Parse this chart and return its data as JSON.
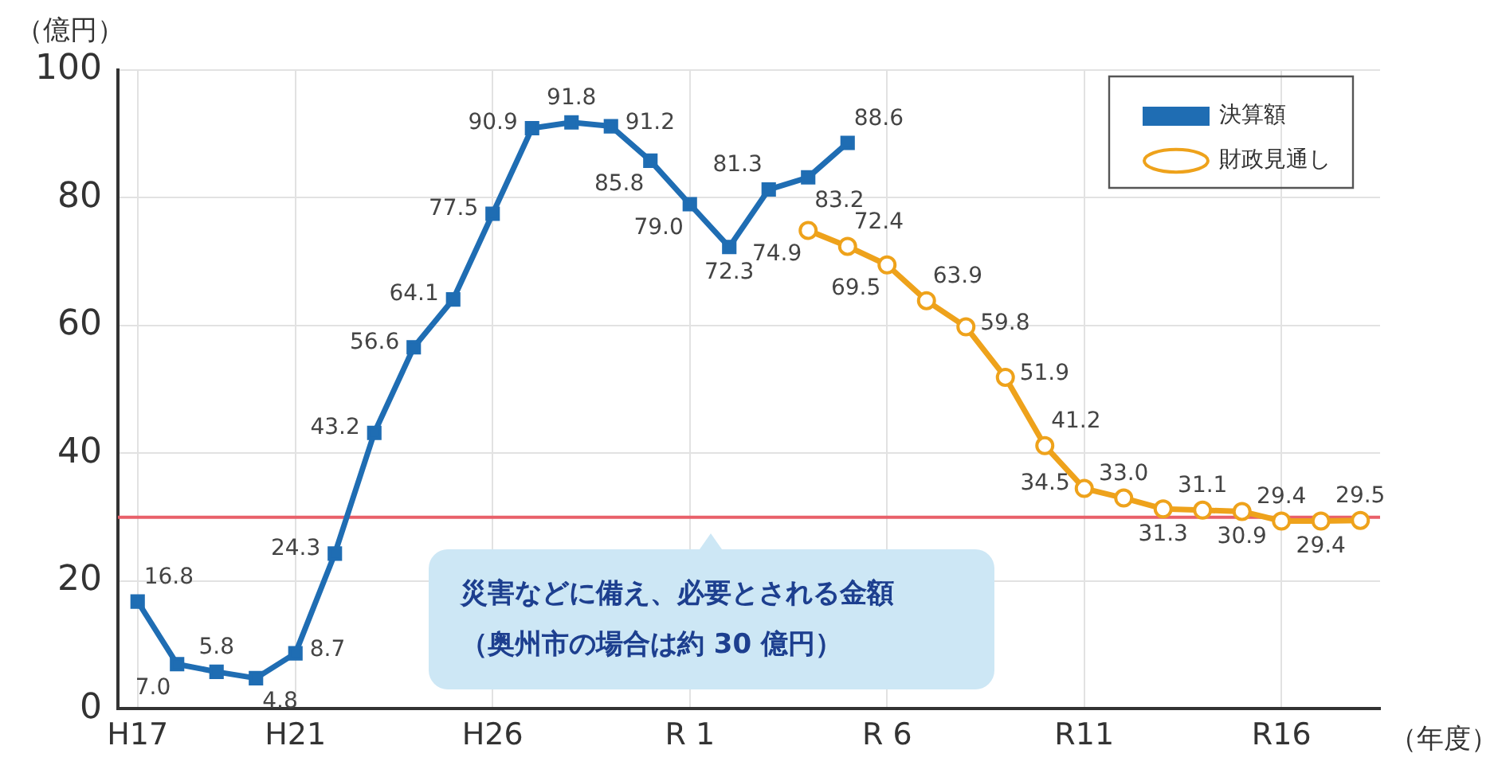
{
  "chart_data": {
    "type": "line",
    "xlabel": "（年度）",
    "ylabel": "（億円）",
    "categories": [
      "H17",
      null,
      null,
      null,
      "H21",
      null,
      null,
      null,
      null,
      "H26",
      null,
      null,
      null,
      null,
      "R 1",
      null,
      null,
      null,
      null,
      "R 6",
      null,
      null,
      null,
      null,
      "R11",
      null,
      null,
      null,
      null,
      "R16",
      null,
      null
    ],
    "series": [
      {
        "name": "決算額",
        "color": "#1f6db3",
        "marker": "square",
        "values": [
          16.8,
          7.0,
          5.8,
          4.8,
          8.7,
          24.3,
          43.2,
          56.6,
          64.1,
          77.5,
          90.9,
          91.8,
          91.2,
          85.8,
          79.0,
          72.3,
          81.3,
          83.2,
          88.6,
          null,
          null,
          null,
          null,
          null,
          null,
          null,
          null,
          null,
          null,
          null,
          null,
          null
        ],
        "value_labels": [
          "16.8",
          "7.0",
          "5.8",
          "4.8",
          "8.7",
          "24.3",
          "43.2",
          "56.6",
          "64.1",
          "77.5",
          "90.9",
          "91.8",
          "91.2",
          "85.8",
          "79.0",
          "72.3",
          "81.3",
          "83.2",
          "88.6",
          null,
          null,
          null,
          null,
          null,
          null,
          null,
          null,
          null,
          null,
          null,
          null,
          null
        ]
      },
      {
        "name": "財政見通し",
        "color": "#eea21b",
        "marker": "circle",
        "values": [
          null,
          null,
          null,
          null,
          null,
          null,
          null,
          null,
          null,
          null,
          null,
          null,
          null,
          null,
          null,
          null,
          null,
          74.9,
          72.4,
          69.5,
          63.9,
          59.8,
          51.9,
          41.2,
          34.5,
          33.0,
          31.3,
          31.1,
          30.9,
          29.4,
          29.4,
          29.5
        ],
        "value_labels": [
          null,
          null,
          null,
          null,
          null,
          null,
          null,
          null,
          null,
          null,
          null,
          null,
          null,
          null,
          null,
          null,
          null,
          "74.9",
          "72.4",
          "69.5",
          "63.9",
          "59.8",
          "51.9",
          "41.2",
          "34.5",
          "33.0",
          "31.3",
          "31.1",
          "30.9",
          "29.4",
          "29.4",
          "29.5"
        ]
      }
    ],
    "ylim": [
      0,
      100
    ],
    "yticks": [
      0,
      20,
      40,
      60,
      80,
      100
    ],
    "ref_lines": [
      {
        "axis": "y",
        "value": 30,
        "color": "#e8606a",
        "label": "災害などに備え、必要とされる金額（奥州市の場合は約 30 億円）"
      }
    ],
    "grid": true,
    "legend": "top right"
  }
}
